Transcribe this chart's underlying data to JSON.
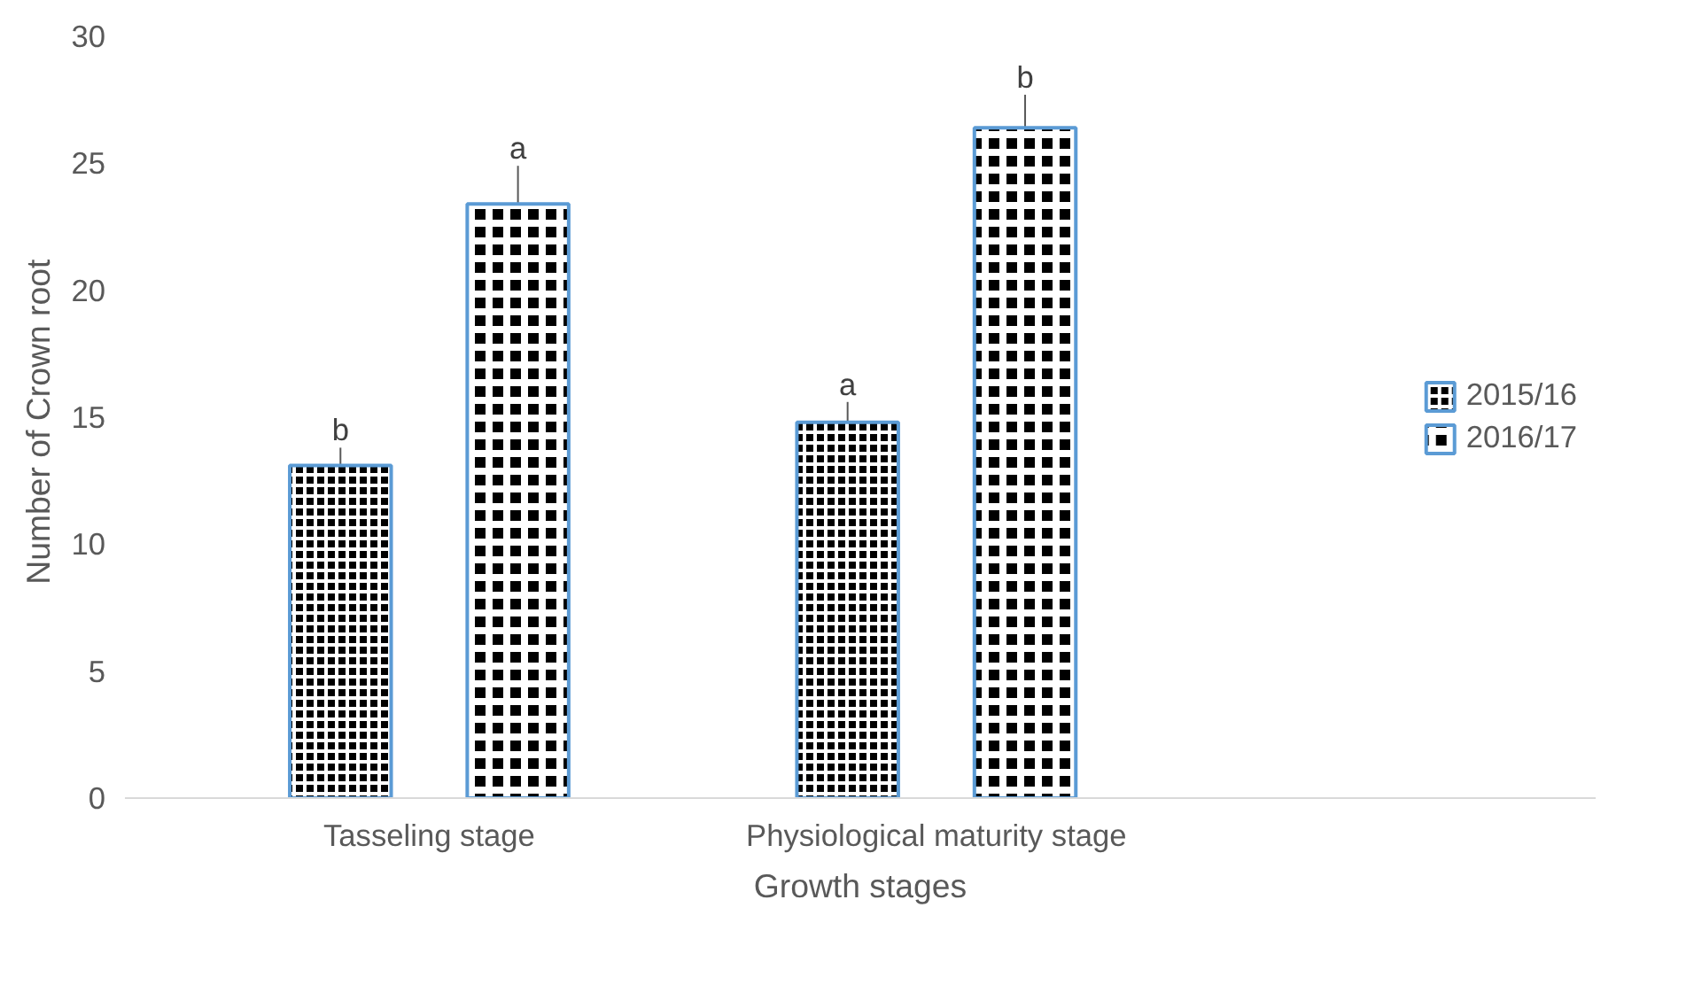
{
  "chart_data": {
    "type": "bar",
    "xlabel": "Growth stages",
    "ylabel": "Number  of Crown root",
    "categories": [
      "Tasseling stage",
      "Physiological maturity stage"
    ],
    "series": [
      {
        "name": "2015/16",
        "color": "#000000",
        "values": [
          13.1,
          14.8
        ],
        "errors": [
          0.7,
          0.8
        ]
      },
      {
        "name": "2016/17",
        "color": "#000000",
        "values": [
          23.4,
          26.4
        ],
        "errors": [
          1.5,
          1.3
        ]
      }
    ],
    "ylim": [
      0,
      30
    ],
    "yticks": [
      0,
      5,
      10,
      15,
      20,
      25,
      30
    ],
    "grid": false,
    "legend": "right",
    "annotations": [
      "b",
      "a",
      "a",
      "b"
    ]
  }
}
